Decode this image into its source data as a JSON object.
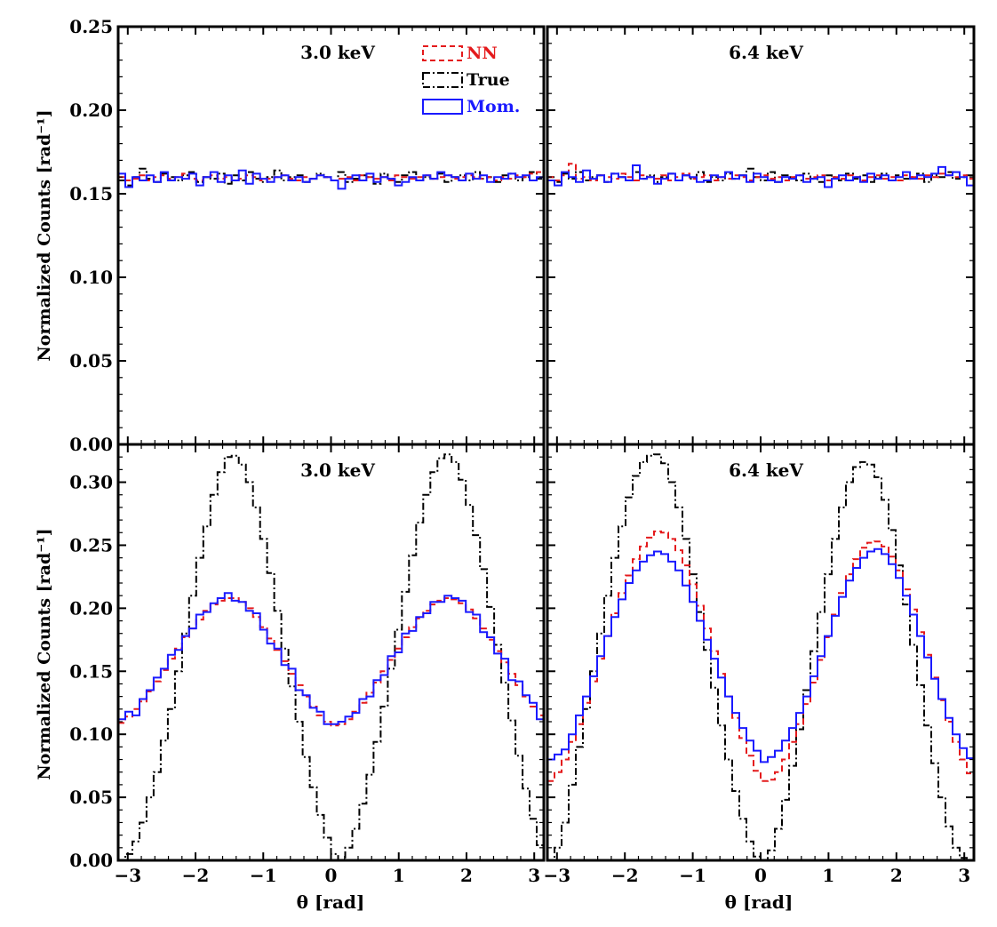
{
  "figure": {
    "ylabel": "Normalized Counts [rad⁻¹]",
    "xlabel": "θ [rad]",
    "legend": {
      "placement": "top-right of top-left panel",
      "entries": [
        {
          "label": "NN",
          "color": "#e41a1c",
          "style": "dashed"
        },
        {
          "label": "True",
          "color": "#000000",
          "style": "dashdot"
        },
        {
          "label": "Mom.",
          "color": "#1a1aff",
          "style": "solid"
        }
      ]
    },
    "colors": {
      "NN": "#e41a1c",
      "True": "#000000",
      "Mom.": "#1a1aff"
    }
  },
  "chart_data": [
    {
      "type": "line",
      "panel": "top-left",
      "annotation": "3.0 keV",
      "xlim": [
        -3.14159,
        3.14159
      ],
      "ylim": [
        0.0,
        0.25
      ],
      "xticks": [
        "−3",
        "−2",
        "−1",
        "0",
        "1",
        "2",
        "3"
      ],
      "yticks": [
        "0.00",
        "0.05",
        "0.10",
        "0.15",
        "0.20",
        "0.25"
      ],
      "grid": false,
      "unpolarized_level": 0.159,
      "series": [
        {
          "name": "NN",
          "values": [
            0.16,
            0.158,
            0.159,
            0.161,
            0.158,
            0.16,
            0.161,
            0.159,
            0.16,
            0.162,
            0.159,
            0.158,
            0.16,
            0.161,
            0.159,
            0.16,
            0.158,
            0.159,
            0.161,
            0.16,
            0.158,
            0.159,
            0.16,
            0.161,
            0.159,
            0.158,
            0.16,
            0.159,
            0.161,
            0.16,
            0.158,
            0.159,
            0.16,
            0.158,
            0.161,
            0.16,
            0.159,
            0.16,
            0.158,
            0.161,
            0.16,
            0.159,
            0.16,
            0.161,
            0.159,
            0.16,
            0.161,
            0.159,
            0.16,
            0.161,
            0.16,
            0.159,
            0.16,
            0.158,
            0.16,
            0.159,
            0.161,
            0.16,
            0.162,
            0.163
          ]
        },
        {
          "name": "True",
          "values": [
            0.158,
            0.155,
            0.16,
            0.165,
            0.159,
            0.157,
            0.162,
            0.16,
            0.158,
            0.161,
            0.163,
            0.157,
            0.16,
            0.159,
            0.162,
            0.156,
            0.161,
            0.158,
            0.163,
            0.159,
            0.157,
            0.16,
            0.164,
            0.158,
            0.16,
            0.161,
            0.157,
            0.159,
            0.162,
            0.16,
            0.158,
            0.163,
            0.157,
            0.159,
            0.161,
            0.16,
            0.156,
            0.162,
            0.159,
            0.157,
            0.161,
            0.163,
            0.158,
            0.16,
            0.159,
            0.162,
            0.157,
            0.16,
            0.161,
            0.158,
            0.163,
            0.159,
            0.16,
            0.157,
            0.161,
            0.162,
            0.158,
            0.16,
            0.163,
            0.159
          ]
        },
        {
          "name": "Mom.",
          "values": [
            0.162,
            0.154,
            0.16,
            0.158,
            0.161,
            0.157,
            0.163,
            0.158,
            0.16,
            0.159,
            0.162,
            0.155,
            0.16,
            0.163,
            0.157,
            0.161,
            0.158,
            0.164,
            0.156,
            0.162,
            0.159,
            0.157,
            0.16,
            0.161,
            0.158,
            0.16,
            0.157,
            0.159,
            0.161,
            0.16,
            0.158,
            0.153,
            0.159,
            0.161,
            0.158,
            0.162,
            0.157,
            0.16,
            0.159,
            0.155,
            0.157,
            0.16,
            0.158,
            0.161,
            0.159,
            0.163,
            0.161,
            0.16,
            0.158,
            0.162,
            0.159,
            0.161,
            0.157,
            0.16,
            0.159,
            0.162,
            0.16,
            0.161,
            0.158,
            0.16
          ]
        }
      ]
    },
    {
      "type": "line",
      "panel": "top-right",
      "annotation": "6.4 keV",
      "xlim": [
        -3.14159,
        3.14159
      ],
      "ylim": [
        0.0,
        0.25
      ],
      "xticks": [
        "−3",
        "−2",
        "−1",
        "0",
        "1",
        "2",
        "3"
      ],
      "yticks": [
        "0.00",
        "0.05",
        "0.10",
        "0.15",
        "0.20",
        "0.25"
      ],
      "grid": false,
      "series": [
        {
          "name": "NN",
          "values": [
            0.16,
            0.158,
            0.161,
            0.168,
            0.159,
            0.16,
            0.158,
            0.161,
            0.16,
            0.159,
            0.162,
            0.16,
            0.158,
            0.161,
            0.16,
            0.159,
            0.161,
            0.158,
            0.16,
            0.162,
            0.159,
            0.16,
            0.161,
            0.158,
            0.16,
            0.159,
            0.161,
            0.16,
            0.158,
            0.16,
            0.161,
            0.159,
            0.16,
            0.158,
            0.16,
            0.161,
            0.159,
            0.16,
            0.161,
            0.158,
            0.16,
            0.159,
            0.161,
            0.16,
            0.158,
            0.16,
            0.161,
            0.159,
            0.16,
            0.158,
            0.161,
            0.16,
            0.159,
            0.161,
            0.16,
            0.162,
            0.161,
            0.16,
            0.161,
            0.159
          ]
        },
        {
          "name": "True",
          "values": [
            0.16,
            0.157,
            0.162,
            0.159,
            0.163,
            0.158,
            0.16,
            0.161,
            0.157,
            0.162,
            0.16,
            0.158,
            0.163,
            0.159,
            0.161,
            0.157,
            0.16,
            0.162,
            0.158,
            0.161,
            0.159,
            0.163,
            0.157,
            0.16,
            0.158,
            0.162,
            0.159,
            0.161,
            0.165,
            0.16,
            0.158,
            0.163,
            0.157,
            0.161,
            0.16,
            0.158,
            0.162,
            0.159,
            0.157,
            0.161,
            0.16,
            0.158,
            0.162,
            0.159,
            0.161,
            0.157,
            0.16,
            0.162,
            0.158,
            0.161,
            0.159,
            0.16,
            0.162,
            0.157,
            0.161,
            0.16,
            0.163,
            0.159,
            0.16,
            0.161
          ]
        },
        {
          "name": "Mom.",
          "values": [
            0.158,
            0.155,
            0.163,
            0.16,
            0.157,
            0.164,
            0.159,
            0.161,
            0.157,
            0.162,
            0.16,
            0.158,
            0.167,
            0.159,
            0.16,
            0.156,
            0.159,
            0.162,
            0.158,
            0.161,
            0.16,
            0.157,
            0.158,
            0.161,
            0.16,
            0.163,
            0.159,
            0.161,
            0.157,
            0.162,
            0.16,
            0.158,
            0.157,
            0.16,
            0.159,
            0.161,
            0.157,
            0.159,
            0.16,
            0.154,
            0.159,
            0.161,
            0.158,
            0.16,
            0.157,
            0.162,
            0.159,
            0.161,
            0.158,
            0.16,
            0.163,
            0.159,
            0.161,
            0.16,
            0.162,
            0.166,
            0.161,
            0.163,
            0.16,
            0.155
          ]
        }
      ]
    },
    {
      "type": "line",
      "panel": "bottom-left",
      "annotation": "3.0 keV",
      "xlim": [
        -3.14159,
        3.14159
      ],
      "ylim": [
        0.0,
        0.33
      ],
      "xticks": [
        "−3",
        "−2",
        "−1",
        "0",
        "1",
        "2",
        "3"
      ],
      "yticks": [
        "0.00",
        "0.05",
        "0.10",
        "0.15",
        "0.20",
        "0.25",
        "0.30"
      ],
      "grid": false,
      "series": [
        {
          "name": "NN",
          "values": [
            0.109,
            0.114,
            0.12,
            0.126,
            0.134,
            0.142,
            0.151,
            0.16,
            0.168,
            0.177,
            0.184,
            0.191,
            0.198,
            0.203,
            0.206,
            0.208,
            0.208,
            0.205,
            0.2,
            0.193,
            0.185,
            0.176,
            0.167,
            0.158,
            0.148,
            0.139,
            0.13,
            0.122,
            0.115,
            0.11,
            0.107,
            0.108,
            0.112,
            0.118,
            0.125,
            0.133,
            0.141,
            0.15,
            0.159,
            0.168,
            0.177,
            0.185,
            0.192,
            0.198,
            0.203,
            0.206,
            0.208,
            0.207,
            0.204,
            0.199,
            0.192,
            0.184,
            0.175,
            0.166,
            0.157,
            0.148,
            0.139,
            0.13,
            0.122,
            0.115
          ]
        },
        {
          "name": "True",
          "values": [
            0.0,
            0.005,
            0.015,
            0.03,
            0.05,
            0.07,
            0.095,
            0.12,
            0.15,
            0.18,
            0.21,
            0.24,
            0.265,
            0.29,
            0.308,
            0.32,
            0.321,
            0.314,
            0.3,
            0.28,
            0.255,
            0.228,
            0.198,
            0.168,
            0.138,
            0.11,
            0.082,
            0.058,
            0.036,
            0.018,
            0.005,
            0.0,
            0.01,
            0.025,
            0.045,
            0.068,
            0.094,
            0.122,
            0.152,
            0.183,
            0.213,
            0.242,
            0.268,
            0.29,
            0.308,
            0.319,
            0.322,
            0.316,
            0.302,
            0.282,
            0.258,
            0.231,
            0.201,
            0.171,
            0.141,
            0.111,
            0.083,
            0.057,
            0.033,
            0.012
          ]
        },
        {
          "name": "Mom.",
          "values": [
            0.112,
            0.118,
            0.115,
            0.128,
            0.135,
            0.145,
            0.152,
            0.163,
            0.167,
            0.178,
            0.184,
            0.195,
            0.197,
            0.204,
            0.208,
            0.212,
            0.206,
            0.205,
            0.198,
            0.196,
            0.183,
            0.172,
            0.168,
            0.155,
            0.152,
            0.135,
            0.131,
            0.121,
            0.118,
            0.108,
            0.108,
            0.11,
            0.114,
            0.117,
            0.128,
            0.13,
            0.143,
            0.147,
            0.162,
            0.165,
            0.18,
            0.182,
            0.193,
            0.196,
            0.205,
            0.205,
            0.21,
            0.208,
            0.206,
            0.197,
            0.195,
            0.181,
            0.177,
            0.164,
            0.16,
            0.143,
            0.142,
            0.131,
            0.125,
            0.112
          ]
        }
      ]
    },
    {
      "type": "line",
      "panel": "bottom-right",
      "annotation": "6.4 keV",
      "xlim": [
        -3.14159,
        3.14159
      ],
      "ylim": [
        0.0,
        0.33
      ],
      "xticks": [
        "−3",
        "−2",
        "−1",
        "0",
        "1",
        "2",
        "3"
      ],
      "yticks": [
        "0.00",
        "0.05",
        "0.10",
        "0.15",
        "0.20",
        "0.25",
        "0.30"
      ],
      "grid": false,
      "series": [
        {
          "name": "NN",
          "values": [
            0.063,
            0.07,
            0.08,
            0.094,
            0.108,
            0.125,
            0.142,
            0.16,
            0.178,
            0.196,
            0.212,
            0.226,
            0.239,
            0.249,
            0.256,
            0.261,
            0.26,
            0.255,
            0.246,
            0.234,
            0.219,
            0.202,
            0.184,
            0.166,
            0.148,
            0.13,
            0.113,
            0.097,
            0.083,
            0.071,
            0.063,
            0.064,
            0.07,
            0.08,
            0.094,
            0.108,
            0.124,
            0.141,
            0.159,
            0.177,
            0.195,
            0.212,
            0.227,
            0.239,
            0.248,
            0.252,
            0.253,
            0.249,
            0.241,
            0.23,
            0.215,
            0.199,
            0.181,
            0.163,
            0.145,
            0.127,
            0.11,
            0.094,
            0.08,
            0.069
          ]
        },
        {
          "name": "True",
          "values": [
            0.0,
            0.01,
            0.03,
            0.06,
            0.09,
            0.12,
            0.15,
            0.18,
            0.21,
            0.24,
            0.265,
            0.288,
            0.305,
            0.316,
            0.321,
            0.322,
            0.315,
            0.3,
            0.28,
            0.255,
            0.227,
            0.197,
            0.167,
            0.137,
            0.107,
            0.08,
            0.055,
            0.033,
            0.015,
            0.003,
            0.0,
            0.008,
            0.025,
            0.048,
            0.075,
            0.104,
            0.135,
            0.166,
            0.197,
            0.227,
            0.255,
            0.28,
            0.3,
            0.312,
            0.316,
            0.314,
            0.304,
            0.286,
            0.262,
            0.234,
            0.203,
            0.171,
            0.139,
            0.107,
            0.077,
            0.05,
            0.027,
            0.01,
            0.002,
            0.0
          ]
        },
        {
          "name": "Mom.",
          "values": [
            0.08,
            0.084,
            0.088,
            0.1,
            0.115,
            0.13,
            0.146,
            0.162,
            0.178,
            0.193,
            0.207,
            0.22,
            0.23,
            0.237,
            0.242,
            0.245,
            0.243,
            0.237,
            0.23,
            0.218,
            0.205,
            0.19,
            0.175,
            0.16,
            0.145,
            0.13,
            0.117,
            0.105,
            0.095,
            0.087,
            0.078,
            0.082,
            0.087,
            0.095,
            0.105,
            0.117,
            0.13,
            0.146,
            0.162,
            0.178,
            0.194,
            0.209,
            0.222,
            0.232,
            0.24,
            0.245,
            0.247,
            0.243,
            0.235,
            0.224,
            0.21,
            0.195,
            0.178,
            0.161,
            0.144,
            0.128,
            0.113,
            0.1,
            0.089,
            0.081
          ]
        }
      ]
    }
  ]
}
